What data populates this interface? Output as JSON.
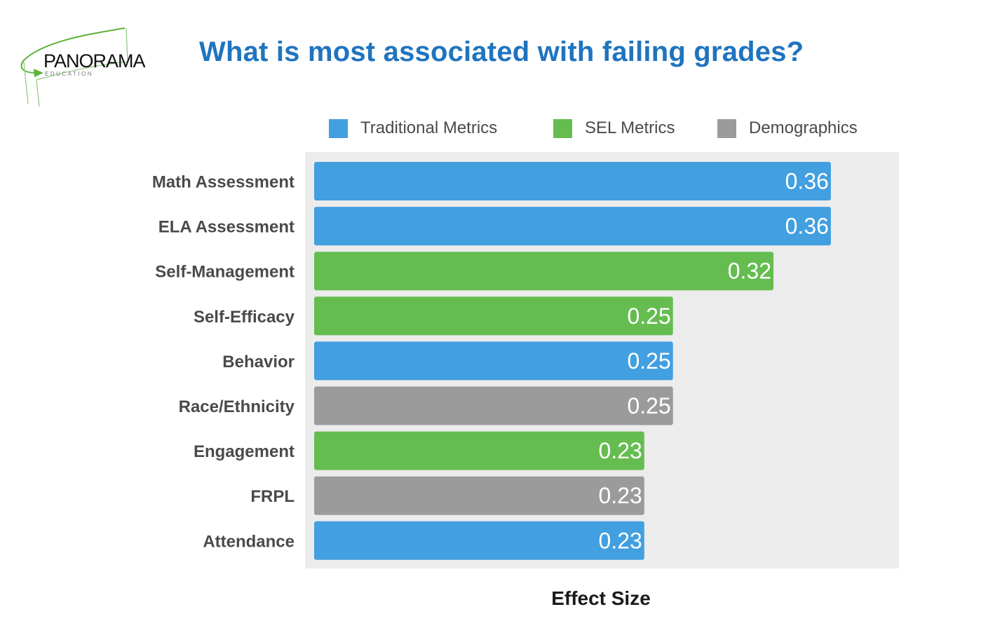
{
  "logo": {
    "brand": "PANORAMA",
    "sub": "EDUCATION",
    "accent_color": "#5cb33c"
  },
  "chart_data": {
    "type": "bar",
    "orientation": "horizontal",
    "title": "What is most associated with failing grades?",
    "xlabel": "Effect Size",
    "ylabel": "",
    "grid": false,
    "legend_position": "top",
    "legend": [
      {
        "name": "Traditional Metrics",
        "color": "#429fe0"
      },
      {
        "name": "SEL Metrics",
        "color": "#65bd50"
      },
      {
        "name": "Demographics",
        "color": "#9b9b9b"
      }
    ],
    "categories": [
      "Math Assessment",
      "ELA Assessment",
      "Self-Management",
      "Self-Efficacy",
      "Behavior",
      "Race/Ethnicity",
      "Engagement",
      "FRPL",
      "Attendance"
    ],
    "values": [
      0.36,
      0.36,
      0.32,
      0.25,
      0.25,
      0.25,
      0.23,
      0.23,
      0.23
    ],
    "groups": [
      "Traditional Metrics",
      "Traditional Metrics",
      "SEL Metrics",
      "SEL Metrics",
      "Traditional Metrics",
      "Demographics",
      "SEL Metrics",
      "Demographics",
      "Traditional Metrics"
    ],
    "xlim": [
      0,
      0.41
    ]
  }
}
